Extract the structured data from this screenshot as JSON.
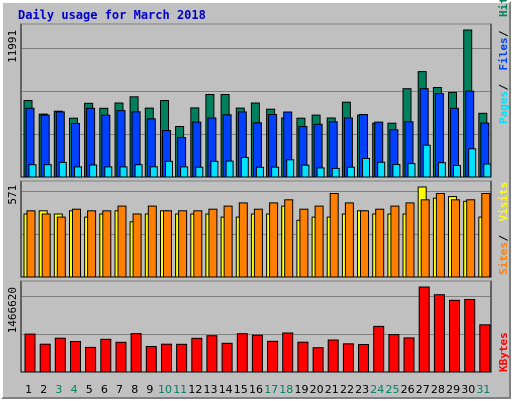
{
  "chart_data": {
    "type": "bar",
    "title": "Daily usage for March 2018",
    "categories": [
      "1",
      "2",
      "3",
      "4",
      "5",
      "6",
      "7",
      "8",
      "9",
      "10",
      "11",
      "12",
      "13",
      "14",
      "15",
      "16",
      "17",
      "18",
      "19",
      "20",
      "21",
      "22",
      "23",
      "24",
      "25",
      "26",
      "27",
      "28",
      "29",
      "30",
      "31"
    ],
    "weekend_days": [
      "3",
      "4",
      "10",
      "11",
      "17",
      "18",
      "24",
      "25",
      "31"
    ],
    "colors": {
      "hits": "#00805c",
      "files": "#0040ff",
      "pages": "#00e0ff",
      "visits": "#ffff00",
      "sites": "#ff8000",
      "kbytes": "#ff0000",
      "weekday_label": "#000000",
      "weekend_label": "#00805c"
    },
    "panels": [
      {
        "id": "hits_files_pages",
        "max_label": "11991",
        "ylim": [
          0,
          11991
        ],
        "legend": [
          "Pages",
          "Files",
          "Hits"
        ],
        "series": [
          {
            "name": "Hits",
            "color": "#00805c",
            "values": [
              6240,
              5130,
              5370,
              4800,
              6010,
              5600,
              6040,
              6540,
              5620,
              6240,
              4120,
              5640,
              6730,
              6730,
              5620,
              6040,
              5530,
              4810,
              4800,
              5050,
              4810,
              6100,
              5050,
              4390,
              4390,
              7200,
              8600,
              7300,
              6900,
              12000,
              5200
            ]
          },
          {
            "name": "Files",
            "color": "#0040ff",
            "values": [
              5600,
              5050,
              5310,
              4360,
              5600,
              5040,
              5420,
              5320,
              4750,
              3790,
              3210,
              4480,
              4810,
              5070,
              5310,
              4420,
              5100,
              5300,
              4120,
              4300,
              4500,
              4810,
              5100,
              4480,
              3850,
              4500,
              7200,
              6800,
              5600,
              7000,
              4400
            ]
          },
          {
            "name": "Pages",
            "color": "#00e0ff",
            "values": [
              1000,
              1000,
              1190,
              820,
              980,
              820,
              820,
              1000,
              830,
              1280,
              820,
              800,
              1280,
              1300,
              1590,
              790,
              800,
              1400,
              960,
              740,
              700,
              800,
              1520,
              1200,
              1020,
              1090,
              2590,
              1170,
              940,
              2300,
              1060
            ]
          }
        ]
      },
      {
        "id": "visits_sites",
        "max_label": "571",
        "ylim": [
          0,
          571
        ],
        "legend": [
          "Sites",
          "Visits"
        ],
        "series": [
          {
            "name": "Visits",
            "color": "#ffff00",
            "values": [
              400,
              420,
              400,
              420,
              380,
              400,
              420,
              350,
              400,
              420,
              400,
              400,
              400,
              380,
              380,
              400,
              400,
              450,
              360,
              380,
              380,
              400,
              420,
              400,
              400,
              400,
              580,
              500,
              510,
              480,
              380
            ]
          },
          {
            "name": "Sites",
            "color": "#ff8000",
            "values": [
              420,
              400,
              380,
              430,
              420,
              420,
              450,
              400,
              450,
              420,
              420,
              420,
              430,
              450,
              470,
              430,
              470,
              490,
              430,
              450,
              530,
              470,
              420,
              430,
              450,
              470,
              490,
              530,
              490,
              490,
              530
            ]
          }
        ]
      },
      {
        "id": "kbytes",
        "max_label": "1466620",
        "ylim": [
          0,
          1466620
        ],
        "legend": [
          "KBytes"
        ],
        "series": [
          {
            "name": "KBytes",
            "color": "#ff0000",
            "values": [
              653500,
              478900,
              583200,
              526000,
              425000,
              564500,
              512800,
              663300,
              439500,
              479400,
              478600,
              582000,
              625900,
              495300,
              660200,
              635800,
              530400,
              673300,
              514700,
              420100,
              552900,
              486800,
              474800,
              786600,
              645000,
              588400,
              1466620,
              1334300,
              1237200,
              1251200,
              814000
            ]
          }
        ]
      }
    ]
  }
}
